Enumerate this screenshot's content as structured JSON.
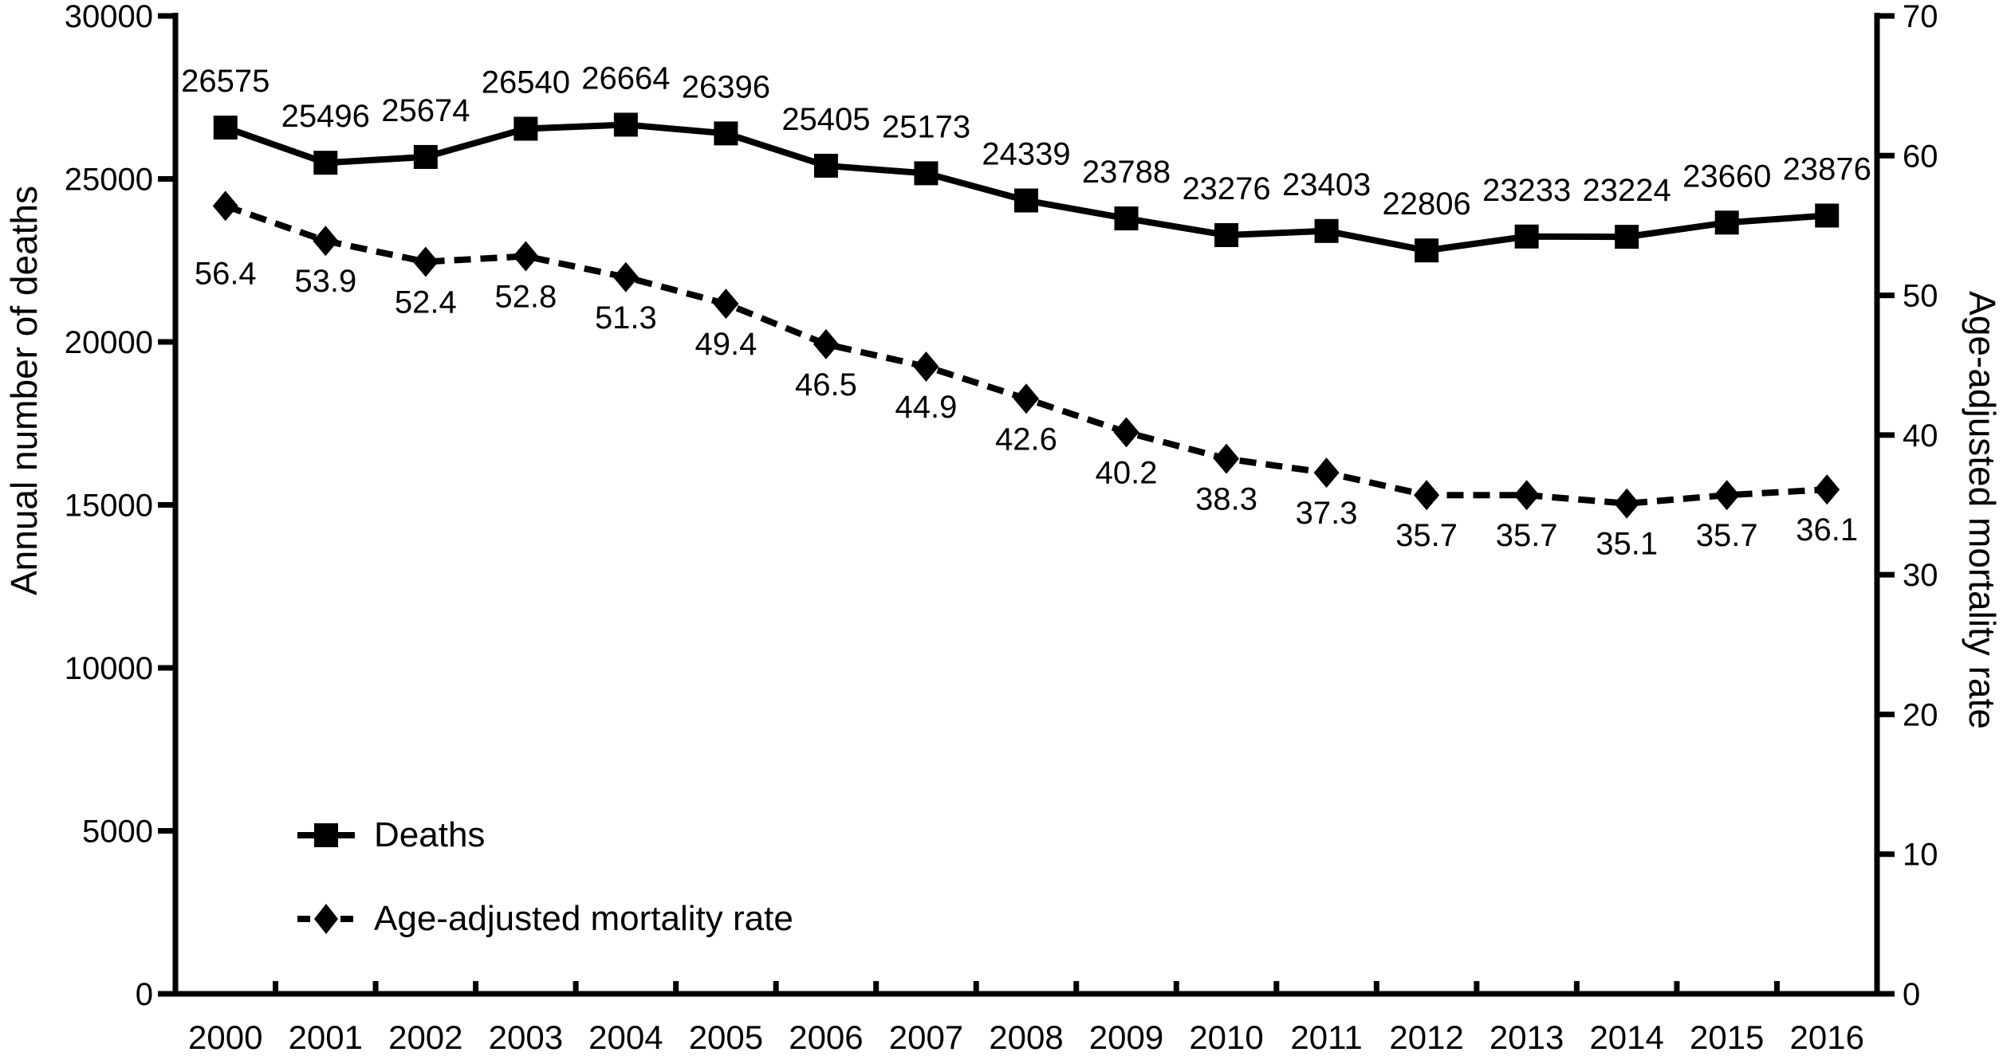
{
  "figure": {
    "background": "#ffffff",
    "ink_color": "#000000"
  },
  "chart_data": {
    "type": "line",
    "title": "",
    "grid": false,
    "x": [
      "2000",
      "2001",
      "2002",
      "2003",
      "2004",
      "2005",
      "2006",
      "2007",
      "2008",
      "2009",
      "2010",
      "2011",
      "2012",
      "2013",
      "2014",
      "2015",
      "2016"
    ],
    "series": [
      {
        "name": "Deaths",
        "axis": "left",
        "marker": "square",
        "line_style": "solid",
        "values": [
          26575,
          25496,
          25674,
          26540,
          26664,
          26396,
          25405,
          25173,
          24339,
          23788,
          23276,
          23403,
          22806,
          23233,
          23224,
          23660,
          23876
        ]
      },
      {
        "name": "Age-adjusted mortality rate",
        "axis": "right",
        "marker": "diamond",
        "line_style": "dashed",
        "values": [
          56.4,
          53.9,
          52.4,
          52.8,
          51.3,
          49.4,
          46.5,
          44.9,
          42.6,
          40.2,
          38.3,
          37.3,
          35.7,
          35.7,
          35.1,
          35.7,
          36.1
        ]
      }
    ],
    "left_axis": {
      "label": "Annual number of deaths",
      "range": [
        0,
        30000
      ],
      "ticks": [
        30000,
        25000,
        20000,
        15000,
        10000,
        5000,
        0
      ]
    },
    "right_axis": {
      "label": "Age-adjusted mortality rate",
      "range": [
        0,
        70
      ],
      "ticks": [
        70,
        60,
        50,
        40,
        30,
        20,
        10,
        0
      ]
    },
    "legend": {
      "position": "bottom-left",
      "entries": [
        "Deaths",
        "Age-adjusted mortality rate"
      ]
    }
  }
}
